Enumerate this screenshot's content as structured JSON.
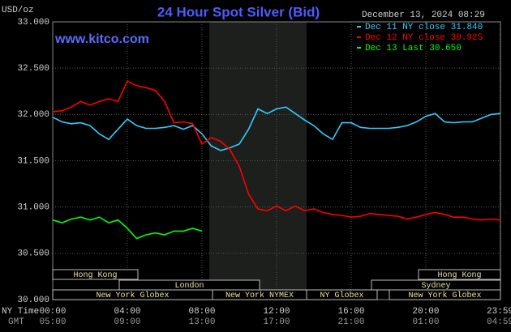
{
  "chart_data": {
    "type": "line",
    "title": "24 Hour Spot Silver (Bid)",
    "y_unit": "USD/oz",
    "timestamp": "December 13, 2024 08:29",
    "source": "www.kitco.com",
    "x_axis_label": "NY Time",
    "x2_axis_label": "GMT",
    "x": [
      0,
      0.5,
      1,
      1.5,
      2,
      2.5,
      3,
      3.5,
      4,
      4.5,
      5,
      5.5,
      6,
      6.5,
      7,
      7.5,
      8,
      8.5,
      9,
      9.5,
      10,
      10.5,
      11,
      11.5,
      12,
      12.5,
      13,
      13.5,
      14,
      14.5,
      15,
      15.5,
      16,
      16.5,
      17,
      17.5,
      18,
      18.5,
      19,
      19.5,
      20,
      20.5,
      21,
      21.5,
      22,
      22.5,
      23,
      23.5,
      24
    ],
    "series": [
      {
        "name": "Dec 11 NY close 31.840",
        "color": "#33ccff",
        "values": [
          31.97,
          31.92,
          31.9,
          31.91,
          31.88,
          31.79,
          31.73,
          31.84,
          31.95,
          31.88,
          31.85,
          31.85,
          31.86,
          31.88,
          31.84,
          31.88,
          31.79,
          31.66,
          31.61,
          31.64,
          31.68,
          31.84,
          32.06,
          32.01,
          32.06,
          32.08,
          32.01,
          31.94,
          31.88,
          31.79,
          31.73,
          31.91,
          31.91,
          31.86,
          31.85,
          31.85,
          31.85,
          31.86,
          31.88,
          31.92,
          31.98,
          32.01,
          31.92,
          31.91,
          31.92,
          31.92,
          31.96,
          32.0,
          32.01
        ]
      },
      {
        "name": "Dec 12 NY close 30.925",
        "color": "#ff0000",
        "values": [
          32.03,
          32.04,
          32.08,
          32.14,
          32.1,
          32.14,
          32.17,
          32.14,
          32.36,
          32.31,
          32.29,
          32.26,
          32.14,
          31.91,
          31.92,
          31.9,
          31.68,
          31.75,
          31.71,
          31.62,
          31.44,
          31.14,
          30.98,
          30.96,
          31.01,
          30.96,
          31.01,
          30.96,
          30.98,
          30.94,
          30.92,
          30.91,
          30.89,
          30.9,
          30.93,
          30.92,
          30.91,
          30.9,
          30.87,
          30.89,
          30.92,
          30.94,
          30.92,
          30.89,
          30.89,
          30.87,
          30.86,
          30.87,
          30.86
        ]
      },
      {
        "name": "Dec 13 Last 30.650",
        "color": "#00ff00",
        "values": [
          30.86,
          30.83,
          30.87,
          30.89,
          30.86,
          30.89,
          30.83,
          30.86,
          30.77,
          30.66,
          30.7,
          30.72,
          30.7,
          30.74,
          30.74,
          30.77,
          30.74,
          null,
          null,
          null,
          null,
          null,
          null,
          null,
          null,
          null,
          null,
          null,
          null,
          null,
          null,
          null,
          null,
          null,
          null,
          null,
          null,
          null,
          null,
          null,
          null,
          null,
          null,
          null,
          null,
          null,
          null,
          null,
          null
        ]
      }
    ],
    "xlim": [
      0,
      24
    ],
    "xticks": [
      {
        "value": 0,
        "label": "00:00"
      },
      {
        "value": 4,
        "label": "04:00"
      },
      {
        "value": 8,
        "label": "08:00"
      },
      {
        "value": 12,
        "label": "12:00"
      },
      {
        "value": 16,
        "label": "16:00"
      },
      {
        "value": 20,
        "label": "20:00"
      },
      {
        "value": 23.98,
        "label": "23:59"
      }
    ],
    "x2ticks": [
      "05:00",
      "09:00",
      "13:00",
      "17:00",
      "21:00",
      "01:00",
      "04:59"
    ],
    "ylim": [
      30,
      33
    ],
    "yticks": [
      {
        "value": 30,
        "label": "30.000"
      },
      {
        "value": 30.5,
        "label": "30.500"
      },
      {
        "value": 31,
        "label": "31.000"
      },
      {
        "value": 31.5,
        "label": "31.500"
      },
      {
        "value": 32,
        "label": "32.000"
      },
      {
        "value": 32.5,
        "label": "32.500"
      },
      {
        "value": 33,
        "label": "33.000"
      }
    ],
    "grid": true,
    "legend": "top-right",
    "sessions": [
      "Hong Kong",
      "Hong Kong",
      "London",
      "Sydney",
      "New York Globex",
      "New York NYMEX",
      "NY Globex",
      "New York Globex"
    ]
  }
}
